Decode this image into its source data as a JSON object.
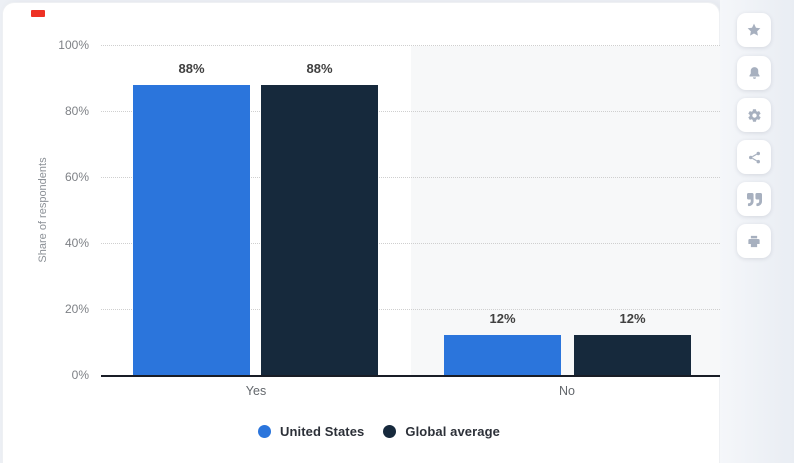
{
  "chart_data": {
    "type": "bar",
    "title": "",
    "categories": [
      "Yes",
      "No"
    ],
    "series": [
      {
        "name": "United States",
        "color": "#2B75DC",
        "values": [
          88,
          12
        ]
      },
      {
        "name": "Global average",
        "color": "#16293C",
        "values": [
          88,
          12
        ]
      }
    ],
    "value_labels": {
      "united_states": [
        "88%",
        "12%"
      ],
      "global_average": [
        "88%",
        "12%"
      ]
    },
    "xlabel": "",
    "ylabel": "Share of respondents",
    "ylim": [
      0,
      100
    ],
    "yticks": [
      "100%",
      "80%",
      "60%",
      "40%",
      "20%",
      "0%"
    ],
    "grid": "dotted-horizontal",
    "legend_position": "bottom",
    "highlight_band": "No"
  },
  "colors": {
    "accent_blue": "#2B75DC",
    "dark_navy": "#16293C",
    "marker_red": "#EE3124",
    "band_gray": "#F7F8F9"
  },
  "sidebar": {
    "icons": [
      "star-icon",
      "bell-icon",
      "gear-icon",
      "share-icon",
      "quote-icon",
      "print-icon"
    ]
  }
}
